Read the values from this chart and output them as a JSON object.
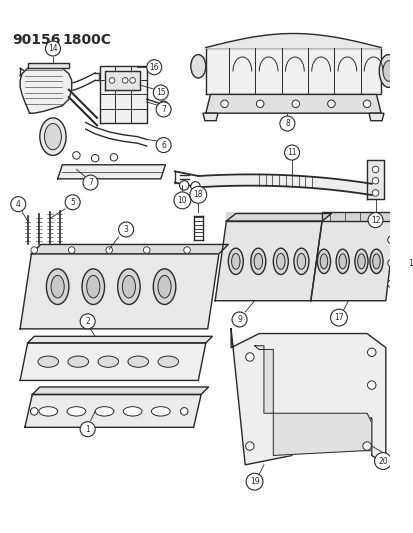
{
  "title1": "90156",
  "title2": "1800C",
  "bg_color": "#ffffff",
  "line_color": "#2a2a2a",
  "title_fontsize": 10,
  "fig_width": 4.14,
  "fig_height": 5.33,
  "dpi": 100
}
